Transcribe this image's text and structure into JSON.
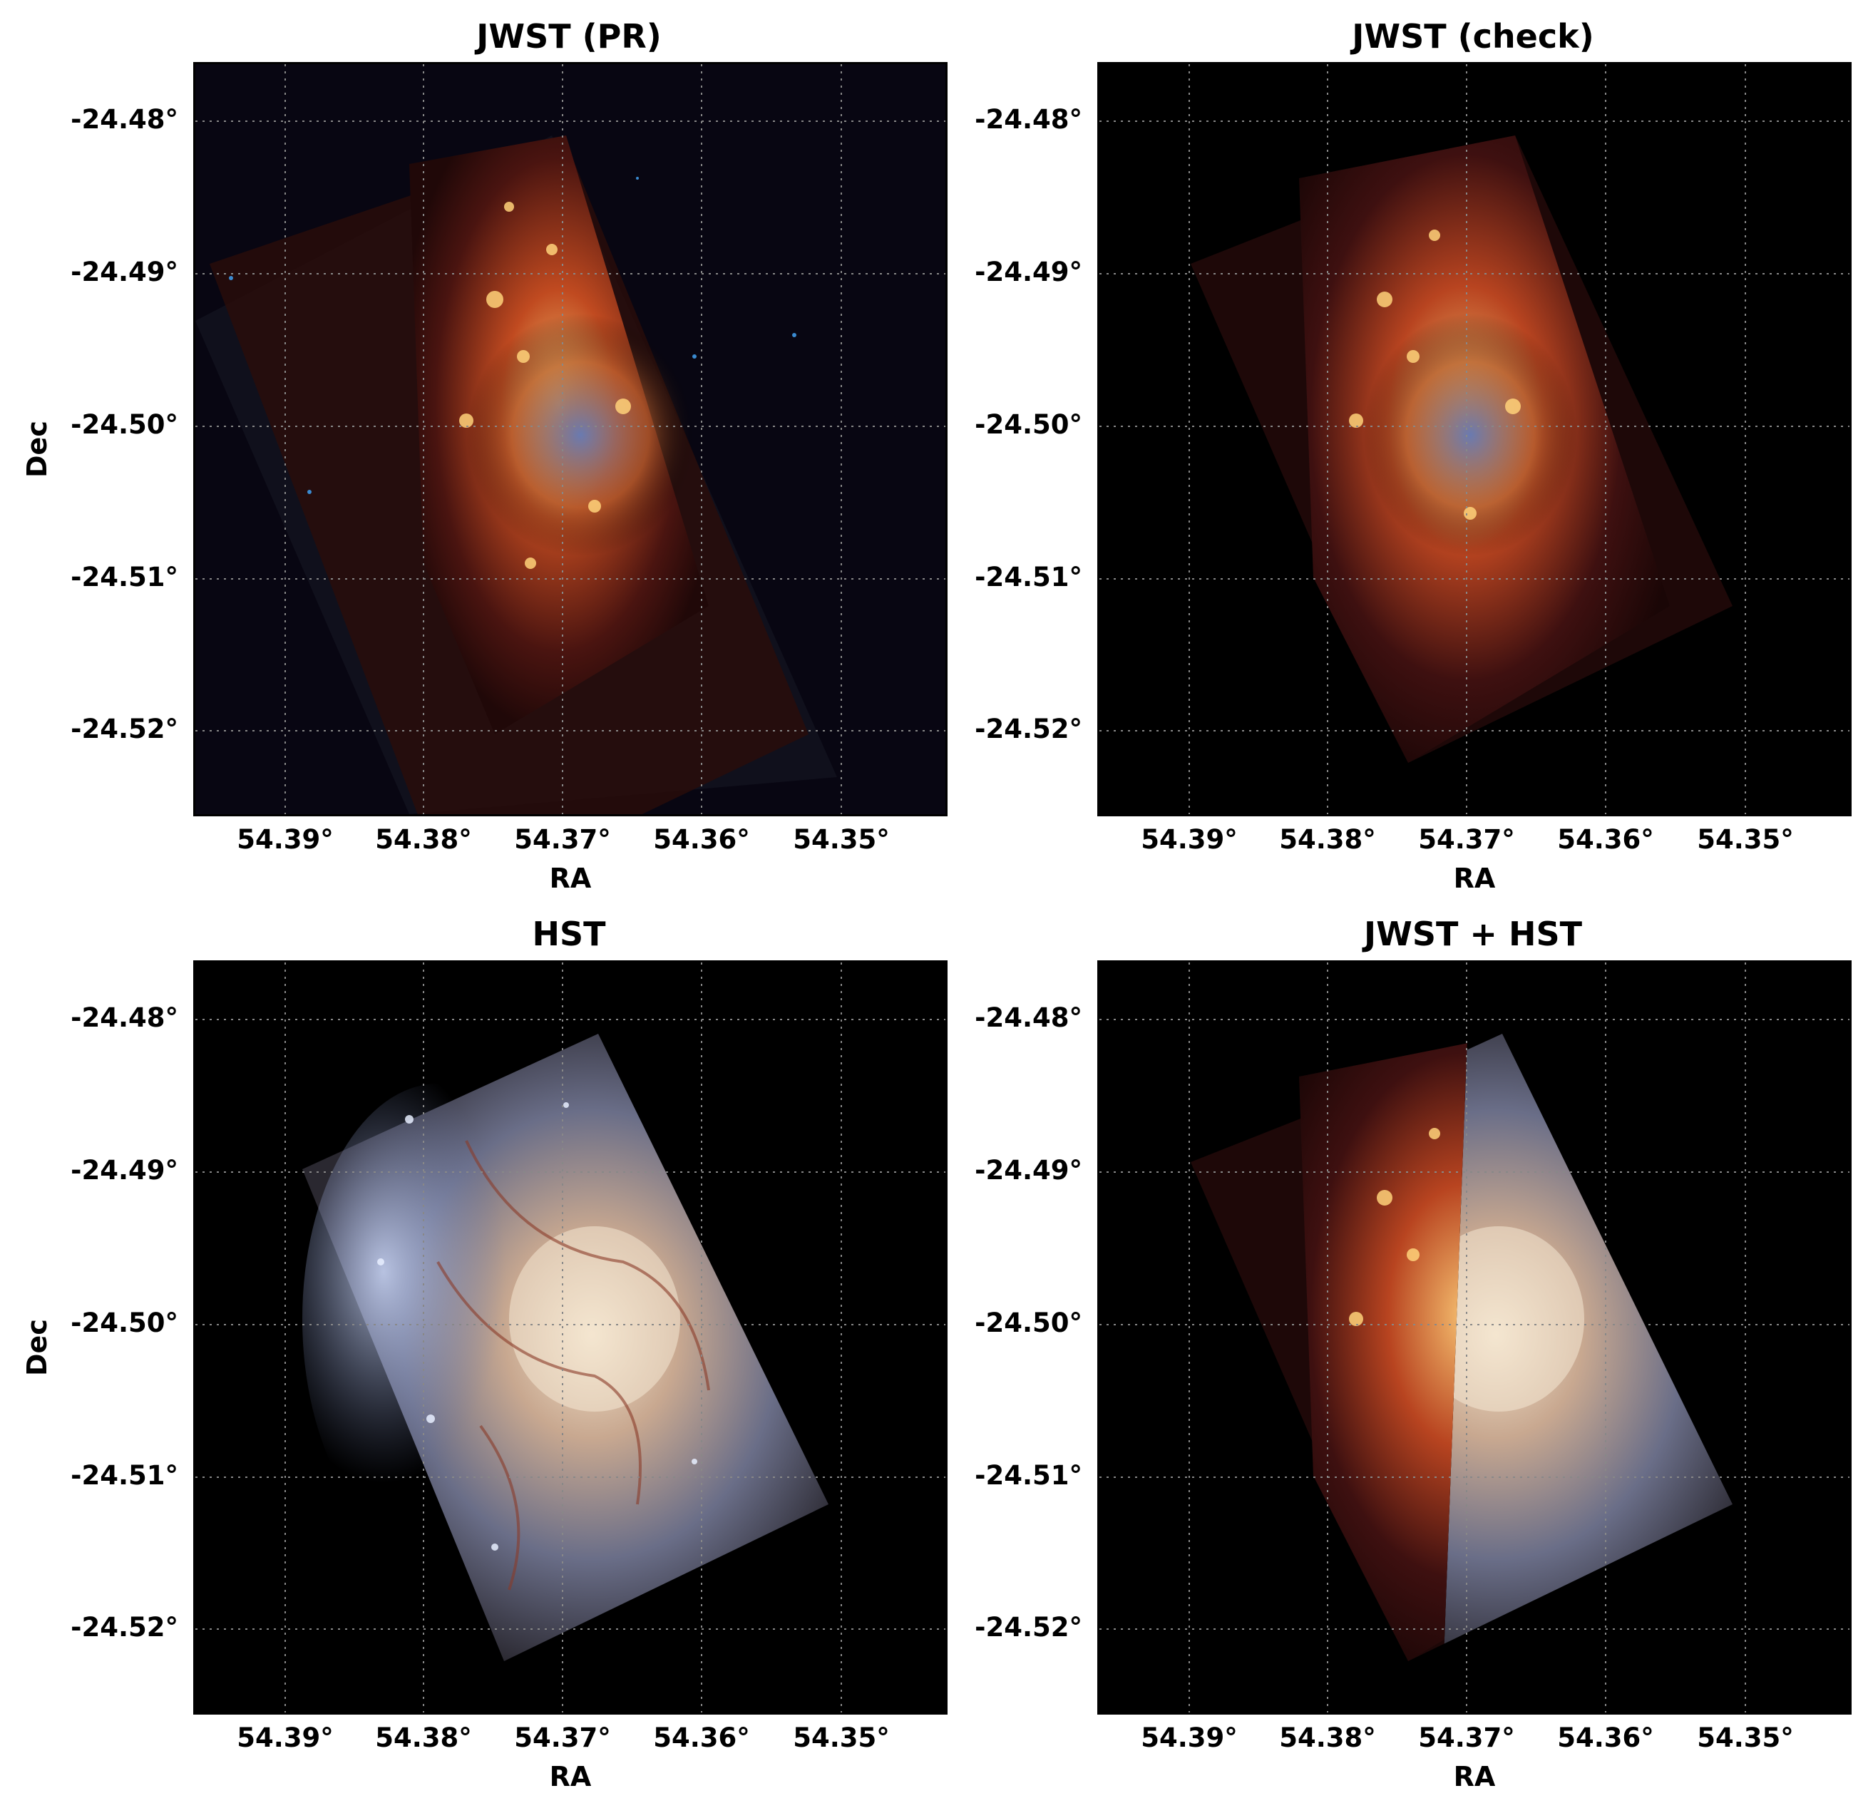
{
  "panels": [
    {
      "title": "JWST (PR)",
      "ylabel": "Dec",
      "xlabel": "RA",
      "image": "jwst-pr"
    },
    {
      "title": "JWST (check)",
      "ylabel": "Dec",
      "xlabel": "RA",
      "image": "jwst-check"
    },
    {
      "title": "HST",
      "ylabel": "Dec",
      "xlabel": "RA",
      "image": "hst"
    },
    {
      "title": "JWST + HST",
      "ylabel": "Dec",
      "xlabel": "RA",
      "image": "jwst-hst"
    }
  ],
  "yticks": [
    "-24.48°",
    "-24.49°",
    "-24.50°",
    "-24.51°",
    "-24.52°"
  ],
  "xticks": [
    "54.39°",
    "54.38°",
    "54.37°",
    "54.36°",
    "54.35°"
  ],
  "colors": {
    "background": "#000000",
    "grid": "#888888",
    "jwst_glow": "#f0a040",
    "jwst_dust": "#6a1a10",
    "hst_blue": "#b8c8f0",
    "hst_core": "#f0e0c8"
  }
}
